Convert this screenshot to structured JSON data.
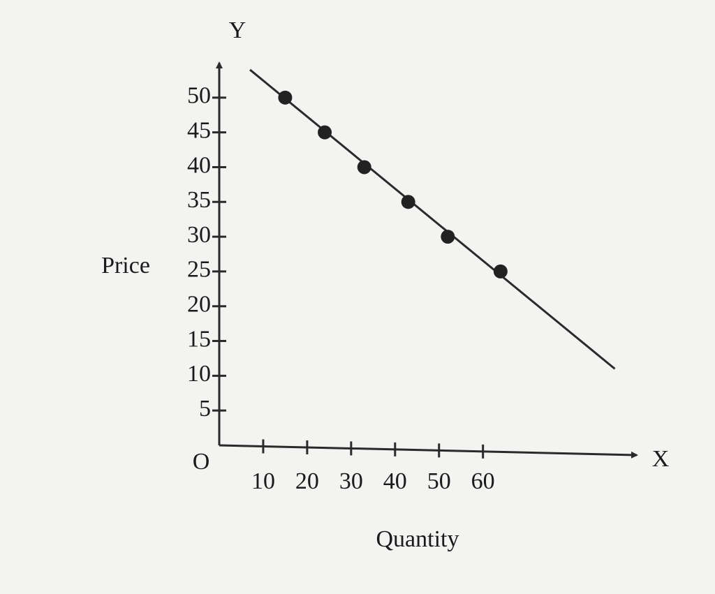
{
  "chart_data": {
    "type": "line",
    "y_axis_name": "Y",
    "x_axis_name": "X",
    "origin_label": "O",
    "ylabel": "Price",
    "xlabel": "Quantity",
    "xlim": [
      0,
      95
    ],
    "ylim": [
      0,
      55
    ],
    "xticks": [
      10,
      20,
      30,
      40,
      50,
      60
    ],
    "yticks": [
      5,
      10,
      15,
      20,
      25,
      30,
      35,
      40,
      45,
      50
    ],
    "series": [
      {
        "x": [
          7,
          90
        ],
        "values": [
          54,
          11
        ],
        "color": "#2a2a2a",
        "line": true,
        "markers": false
      },
      {
        "x": [
          15,
          24,
          33,
          43,
          52,
          64
        ],
        "values": [
          50,
          45,
          40,
          35,
          30,
          25
        ],
        "color": "#222222",
        "line": false,
        "markers": true
      }
    ]
  }
}
